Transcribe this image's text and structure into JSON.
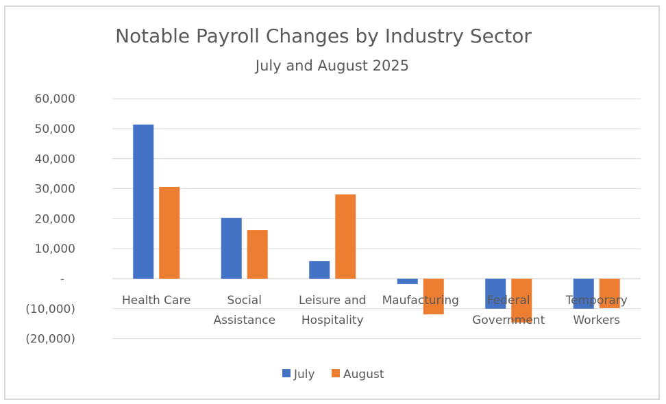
{
  "chart_data": {
    "type": "bar",
    "title": "Notable Payroll Changes by Industry Sector",
    "subtitle": "July and August 2025",
    "xlabel": "",
    "ylabel": "",
    "ylim": [
      -20000,
      60000
    ],
    "yticks": [
      60000,
      50000,
      40000,
      30000,
      20000,
      10000,
      0,
      -10000,
      -20000
    ],
    "ytick_labels": [
      "60,000",
      "50,000",
      "40,000",
      "30,000",
      "20,000",
      "10,000",
      "-",
      "(10,000)",
      "(20,000)"
    ],
    "grid": true,
    "legend_position": "bottom",
    "categories": [
      [
        "Health Care"
      ],
      [
        "Social",
        "Assistance"
      ],
      [
        "Leisure and",
        "Hospitality"
      ],
      [
        "Maufacturing"
      ],
      [
        "Federal",
        "Government"
      ],
      [
        "Temporary",
        "Workers"
      ]
    ],
    "series": [
      {
        "name": "July",
        "color": "#4472c4",
        "values": [
          51400,
          20300,
          5900,
          -1800,
          -10000,
          -10000
        ]
      },
      {
        "name": "August",
        "color": "#ed7d31",
        "values": [
          30600,
          16200,
          28100,
          -11900,
          -14600,
          -9800
        ]
      }
    ]
  }
}
